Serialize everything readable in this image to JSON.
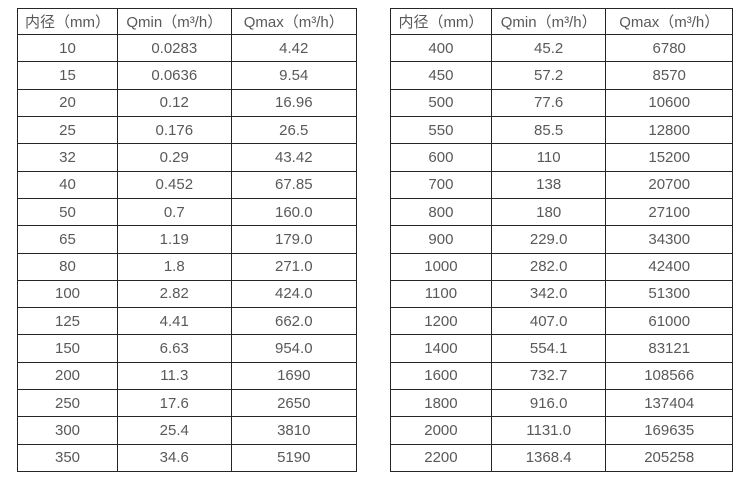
{
  "colors": {
    "background": "#ffffff",
    "border": "#262626",
    "text": "#595959"
  },
  "tables": [
    {
      "name": "flow-table-small-diameters",
      "headers": [
        "内径（mm）",
        "Qmin（m³/h）",
        "Qmax（m³/h）"
      ],
      "rows": [
        [
          "10",
          "0.0283",
          "4.42"
        ],
        [
          "15",
          "0.0636",
          "9.54"
        ],
        [
          "20",
          "0.12",
          "16.96"
        ],
        [
          "25",
          "0.176",
          "26.5"
        ],
        [
          "32",
          "0.29",
          "43.42"
        ],
        [
          "40",
          "0.452",
          "67.85"
        ],
        [
          "50",
          "0.7",
          "160.0"
        ],
        [
          "65",
          "1.19",
          "179.0"
        ],
        [
          "80",
          "1.8",
          "271.0"
        ],
        [
          "100",
          "2.82",
          "424.0"
        ],
        [
          "125",
          "4.41",
          "662.0"
        ],
        [
          "150",
          "6.63",
          "954.0"
        ],
        [
          "200",
          "11.3",
          "1690"
        ],
        [
          "250",
          "17.6",
          "2650"
        ],
        [
          "300",
          "25.4",
          "3810"
        ],
        [
          "350",
          "34.6",
          "5190"
        ]
      ]
    },
    {
      "name": "flow-table-large-diameters",
      "headers": [
        "内径（mm）",
        "Qmin（m³/h）",
        "Qmax（m³/h）"
      ],
      "rows": [
        [
          "400",
          "45.2",
          "6780"
        ],
        [
          "450",
          "57.2",
          "8570"
        ],
        [
          "500",
          "77.6",
          "10600"
        ],
        [
          "550",
          "85.5",
          "12800"
        ],
        [
          "600",
          "110",
          "15200"
        ],
        [
          "700",
          "138",
          "20700"
        ],
        [
          "800",
          "180",
          "27100"
        ],
        [
          "900",
          "229.0",
          "34300"
        ],
        [
          "1000",
          "282.0",
          "42400"
        ],
        [
          "1100",
          "342.0",
          "51300"
        ],
        [
          "1200",
          "407.0",
          "61000"
        ],
        [
          "1400",
          "554.1",
          "83121"
        ],
        [
          "1600",
          "732.7",
          "108566"
        ],
        [
          "1800",
          "916.0",
          "137404"
        ],
        [
          "2000",
          "1131.0",
          "169635"
        ],
        [
          "2200",
          "1368.4",
          "205258"
        ]
      ]
    }
  ]
}
